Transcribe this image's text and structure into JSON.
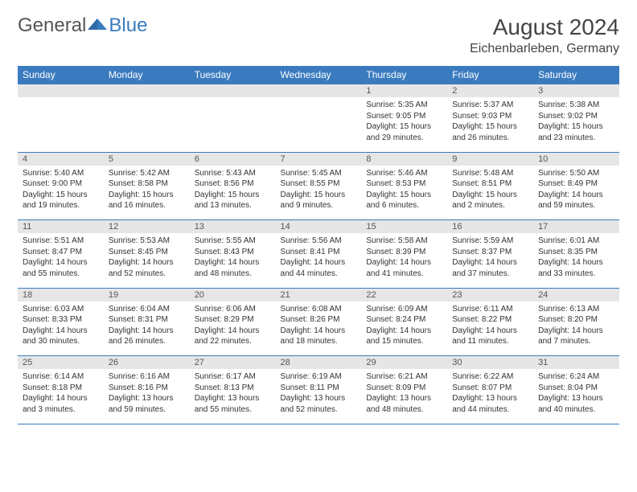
{
  "brand": {
    "text1": "General",
    "text2": "Blue"
  },
  "title": "August 2024",
  "location": "Eichenbarleben, Germany",
  "dow": [
    "Sunday",
    "Monday",
    "Tuesday",
    "Wednesday",
    "Thursday",
    "Friday",
    "Saturday"
  ],
  "colors": {
    "header_bg": "#3a7bbf",
    "header_fg": "#ffffff",
    "daynum_bg": "#e6e6e6",
    "rule": "#3a7bbf",
    "text": "#333333"
  },
  "weeks": [
    [
      null,
      null,
      null,
      null,
      {
        "n": "1",
        "sr": "5:35 AM",
        "ss": "9:05 PM",
        "dl": "15 hours and 29 minutes."
      },
      {
        "n": "2",
        "sr": "5:37 AM",
        "ss": "9:03 PM",
        "dl": "15 hours and 26 minutes."
      },
      {
        "n": "3",
        "sr": "5:38 AM",
        "ss": "9:02 PM",
        "dl": "15 hours and 23 minutes."
      }
    ],
    [
      {
        "n": "4",
        "sr": "5:40 AM",
        "ss": "9:00 PM",
        "dl": "15 hours and 19 minutes."
      },
      {
        "n": "5",
        "sr": "5:42 AM",
        "ss": "8:58 PM",
        "dl": "15 hours and 16 minutes."
      },
      {
        "n": "6",
        "sr": "5:43 AM",
        "ss": "8:56 PM",
        "dl": "15 hours and 13 minutes."
      },
      {
        "n": "7",
        "sr": "5:45 AM",
        "ss": "8:55 PM",
        "dl": "15 hours and 9 minutes."
      },
      {
        "n": "8",
        "sr": "5:46 AM",
        "ss": "8:53 PM",
        "dl": "15 hours and 6 minutes."
      },
      {
        "n": "9",
        "sr": "5:48 AM",
        "ss": "8:51 PM",
        "dl": "15 hours and 2 minutes."
      },
      {
        "n": "10",
        "sr": "5:50 AM",
        "ss": "8:49 PM",
        "dl": "14 hours and 59 minutes."
      }
    ],
    [
      {
        "n": "11",
        "sr": "5:51 AM",
        "ss": "8:47 PM",
        "dl": "14 hours and 55 minutes."
      },
      {
        "n": "12",
        "sr": "5:53 AM",
        "ss": "8:45 PM",
        "dl": "14 hours and 52 minutes."
      },
      {
        "n": "13",
        "sr": "5:55 AM",
        "ss": "8:43 PM",
        "dl": "14 hours and 48 minutes."
      },
      {
        "n": "14",
        "sr": "5:56 AM",
        "ss": "8:41 PM",
        "dl": "14 hours and 44 minutes."
      },
      {
        "n": "15",
        "sr": "5:58 AM",
        "ss": "8:39 PM",
        "dl": "14 hours and 41 minutes."
      },
      {
        "n": "16",
        "sr": "5:59 AM",
        "ss": "8:37 PM",
        "dl": "14 hours and 37 minutes."
      },
      {
        "n": "17",
        "sr": "6:01 AM",
        "ss": "8:35 PM",
        "dl": "14 hours and 33 minutes."
      }
    ],
    [
      {
        "n": "18",
        "sr": "6:03 AM",
        "ss": "8:33 PM",
        "dl": "14 hours and 30 minutes."
      },
      {
        "n": "19",
        "sr": "6:04 AM",
        "ss": "8:31 PM",
        "dl": "14 hours and 26 minutes."
      },
      {
        "n": "20",
        "sr": "6:06 AM",
        "ss": "8:29 PM",
        "dl": "14 hours and 22 minutes."
      },
      {
        "n": "21",
        "sr": "6:08 AM",
        "ss": "8:26 PM",
        "dl": "14 hours and 18 minutes."
      },
      {
        "n": "22",
        "sr": "6:09 AM",
        "ss": "8:24 PM",
        "dl": "14 hours and 15 minutes."
      },
      {
        "n": "23",
        "sr": "6:11 AM",
        "ss": "8:22 PM",
        "dl": "14 hours and 11 minutes."
      },
      {
        "n": "24",
        "sr": "6:13 AM",
        "ss": "8:20 PM",
        "dl": "14 hours and 7 minutes."
      }
    ],
    [
      {
        "n": "25",
        "sr": "6:14 AM",
        "ss": "8:18 PM",
        "dl": "14 hours and 3 minutes."
      },
      {
        "n": "26",
        "sr": "6:16 AM",
        "ss": "8:16 PM",
        "dl": "13 hours and 59 minutes."
      },
      {
        "n": "27",
        "sr": "6:17 AM",
        "ss": "8:13 PM",
        "dl": "13 hours and 55 minutes."
      },
      {
        "n": "28",
        "sr": "6:19 AM",
        "ss": "8:11 PM",
        "dl": "13 hours and 52 minutes."
      },
      {
        "n": "29",
        "sr": "6:21 AM",
        "ss": "8:09 PM",
        "dl": "13 hours and 48 minutes."
      },
      {
        "n": "30",
        "sr": "6:22 AM",
        "ss": "8:07 PM",
        "dl": "13 hours and 44 minutes."
      },
      {
        "n": "31",
        "sr": "6:24 AM",
        "ss": "8:04 PM",
        "dl": "13 hours and 40 minutes."
      }
    ]
  ],
  "labels": {
    "sunrise": "Sunrise: ",
    "sunset": "Sunset: ",
    "daylight": "Daylight: "
  }
}
